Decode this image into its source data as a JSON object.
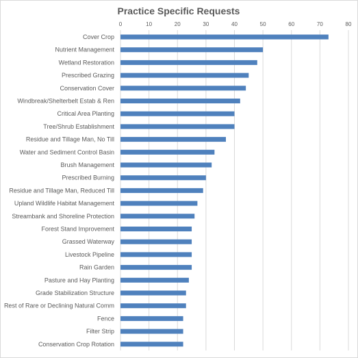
{
  "chart_data": {
    "type": "bar",
    "orientation": "horizontal",
    "title": "Practice Specific Requests",
    "xlabel": "",
    "ylabel": "",
    "xlim": [
      0,
      80
    ],
    "x_ticks": [
      "0",
      "10",
      "20",
      "30",
      "40",
      "50",
      "60",
      "70",
      "80"
    ],
    "grid": true,
    "x_axis_position": "top",
    "legend": "none",
    "bar_color": "#4f81bd",
    "categories": [
      "Cover Crop",
      "Nutrient Management",
      "Wetland Restoration",
      "Prescribed Grazing",
      "Conservation Cover",
      "Windbreak/Shelterbelt Estab & Ren",
      "Critical Area Planting",
      "Tree/Shrub Establishment",
      "Residue and Tillage Man, No Till",
      "Water and Sediment Control Basin",
      "Brush Management",
      "Prescribed Burning",
      "Residue and Tillage Man, Reduced Till",
      "Upland Wildlife Habitat Management",
      "Streambank and Shoreline Protection",
      "Forest Stand Improvement",
      "Grassed Waterway",
      "Livestock Pipeline",
      "Rain Garden",
      "Pasture and Hay Planting",
      "Grade Stabilization Structure",
      "Rest of Rare or Declining Natural Comm",
      "Fence",
      "Filter Strip",
      "Conservation Crop Rotation"
    ],
    "values": [
      73,
      50,
      48,
      45,
      44,
      42,
      40,
      40,
      37,
      33,
      32,
      30,
      29,
      27,
      26,
      25,
      25,
      25,
      25,
      24,
      23,
      23,
      22,
      22,
      22
    ]
  }
}
